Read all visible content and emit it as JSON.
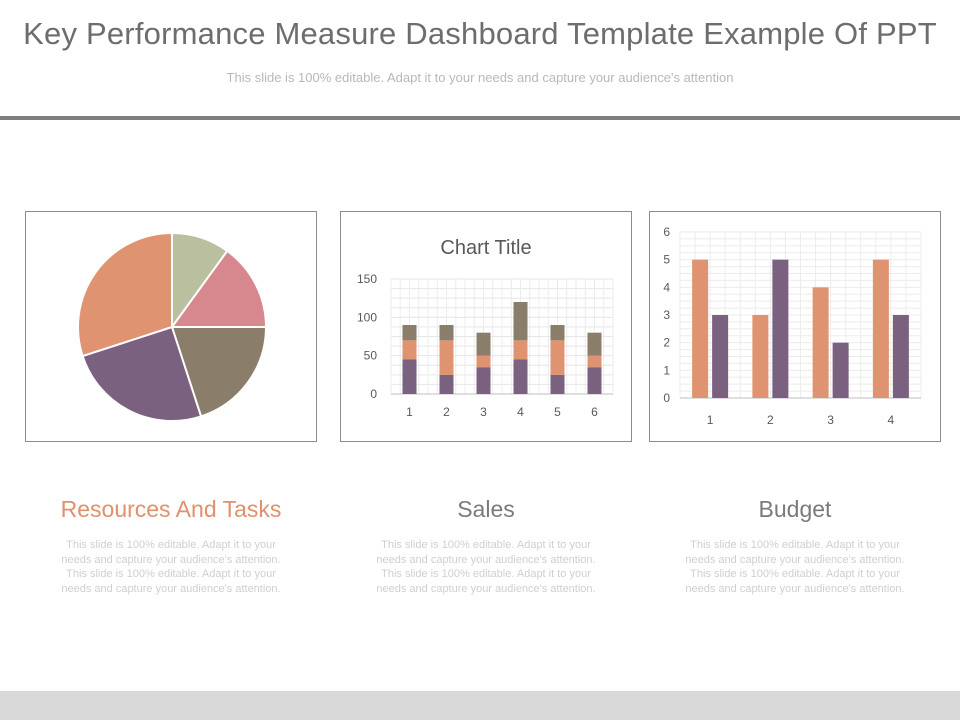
{
  "header": {
    "title": "Key Performance Measure Dashboard Template Example Of PPT",
    "subtitle": "This slide is 100% editable. Adapt it to your needs and capture your audience's attention"
  },
  "colors": {
    "orange": "#e09370",
    "green": "#b9bf9f",
    "pink": "#d7878e",
    "taupe": "#8a7d6a",
    "purple": "#7b6180",
    "section_title_orange": "#e0906c",
    "section_title_gray": "#7a7a7a"
  },
  "chart_data": [
    {
      "type": "pie",
      "slices": [
        {
          "value": 10,
          "color": "#b9bf9f"
        },
        {
          "value": 15,
          "color": "#d7878e"
        },
        {
          "value": 20,
          "color": "#8a7d6a"
        },
        {
          "value": 25,
          "color": "#7b6180"
        },
        {
          "value": 30,
          "color": "#e09370"
        }
      ]
    },
    {
      "type": "bar",
      "stacked": true,
      "title": "Chart Title",
      "categories": [
        "1",
        "2",
        "3",
        "4",
        "5",
        "6"
      ],
      "ylim": [
        0,
        150
      ],
      "yticks": [
        "0",
        "50",
        "100",
        "150"
      ],
      "grid": true,
      "series": [
        {
          "values": [
            45,
            25,
            35,
            45,
            25,
            35
          ],
          "color": "#7b6180"
        },
        {
          "values": [
            25,
            45,
            15,
            25,
            45,
            15
          ],
          "color": "#e09370"
        },
        {
          "values": [
            20,
            20,
            30,
            50,
            20,
            30
          ],
          "color": "#8a7d6a"
        }
      ]
    },
    {
      "type": "bar",
      "stacked": false,
      "categories": [
        "1",
        "2",
        "3",
        "4"
      ],
      "ylim": [
        0,
        6
      ],
      "yticks": [
        "0",
        "1",
        "2",
        "3",
        "4",
        "5",
        "6"
      ],
      "grid": true,
      "series": [
        {
          "values": [
            5,
            3,
            4,
            5
          ],
          "color": "#e09370"
        },
        {
          "values": [
            3,
            5,
            2,
            3
          ],
          "color": "#7b6180"
        }
      ]
    }
  ],
  "sections": [
    {
      "title": "Resources And Tasks",
      "text": "This slide is 100% editable. Adapt it to your needs and capture your audience's attention. This slide is 100% editable. Adapt it to your needs and capture your audience's attention."
    },
    {
      "title": "Sales",
      "text": "This slide is 100% editable. Adapt it to your needs and capture your audience's attention. This slide is 100% editable. Adapt it to your needs and capture your audience's attention."
    },
    {
      "title": "Budget",
      "text": "This slide is 100% editable. Adapt it to your needs and capture your audience's attention. This slide is 100% editable. Adapt it to your needs and capture your audience's attention."
    }
  ]
}
